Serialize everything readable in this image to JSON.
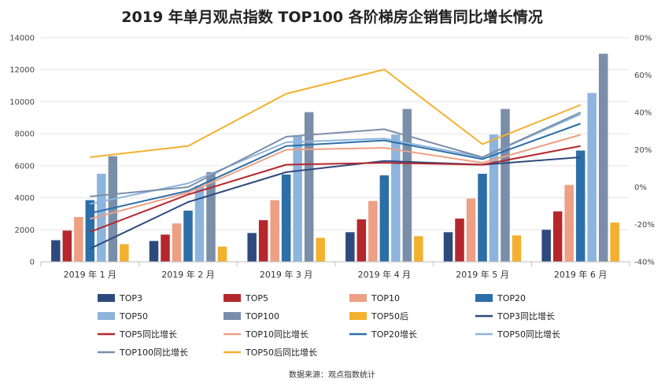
{
  "chart_data": {
    "type": "bar",
    "title": "2019 年单月观点指数 TOP100 各阶梯房企销售同比增长情况",
    "source": "数据来源：观点指数统计",
    "categories": [
      "2019 年 1 月",
      "2019 年 2 月",
      "2019 年 3 月",
      "2019 年 4 月",
      "2019 年 5 月",
      "2019 年 6 月"
    ],
    "ylim_left": [
      0,
      14000
    ],
    "yticks_left": [
      "0",
      "2000",
      "4000",
      "6000",
      "8000",
      "10000",
      "12000",
      "14000"
    ],
    "ylim_right": [
      -40,
      80
    ],
    "yticks_right": [
      "-40%",
      "-20%",
      "0%",
      "20%",
      "40%",
      "60%",
      "80%"
    ],
    "grid": true,
    "legend_position": "bottom",
    "bar_series": [
      {
        "name": "TOP3",
        "color": "#2e4a7d",
        "values": [
          1350,
          1300,
          1800,
          1850,
          1850,
          2000
        ]
      },
      {
        "name": "TOP5",
        "color": "#b5272d",
        "values": [
          1950,
          1700,
          2600,
          2650,
          2700,
          3150
        ]
      },
      {
        "name": "TOP10",
        "color": "#eda083",
        "values": [
          2800,
          2400,
          3850,
          3800,
          3950,
          4800
        ]
      },
      {
        "name": "TOP20",
        "color": "#2c6ea8",
        "values": [
          3850,
          3200,
          5450,
          5400,
          5500,
          6950
        ]
      },
      {
        "name": "TOP50",
        "color": "#8db4dc",
        "values": [
          5500,
          4750,
          7900,
          7950,
          7950,
          10550
        ]
      },
      {
        "name": "TOP100",
        "color": "#7a8ea9",
        "values": [
          6600,
          5600,
          9350,
          9550,
          9550,
          13000
        ]
      },
      {
        "name": "TOP50后",
        "color": "#f2b12e",
        "values": [
          1100,
          950,
          1500,
          1600,
          1650,
          2450
        ]
      }
    ],
    "line_series": [
      {
        "name": "TOP3同比增长",
        "color": "#2e4a7d",
        "values": [
          -33,
          -8,
          8,
          14,
          12,
          16
        ]
      },
      {
        "name": "TOP5同比增长",
        "color": "#b5272d",
        "values": [
          -24,
          -4,
          12,
          13,
          12,
          22
        ]
      },
      {
        "name": "TOP10同比增长",
        "color": "#eda083",
        "values": [
          -17,
          -3,
          20,
          21,
          13,
          28
        ]
      },
      {
        "name": "TOP20增长",
        "color": "#2c6ea8",
        "values": [
          -14,
          -2,
          22,
          25,
          15,
          34
        ]
      },
      {
        "name": "TOP50同比增长",
        "color": "#8db4dc",
        "values": [
          -9,
          2,
          24,
          26,
          16,
          39
        ]
      },
      {
        "name": "TOP100同比增长",
        "color": "#7a8ea9",
        "values": [
          -5,
          0,
          27,
          31,
          16,
          40
        ]
      },
      {
        "name": "TOP50后同比增长",
        "color": "#f2b12e",
        "values": [
          16,
          22,
          50,
          63,
          23,
          44
        ]
      }
    ]
  }
}
